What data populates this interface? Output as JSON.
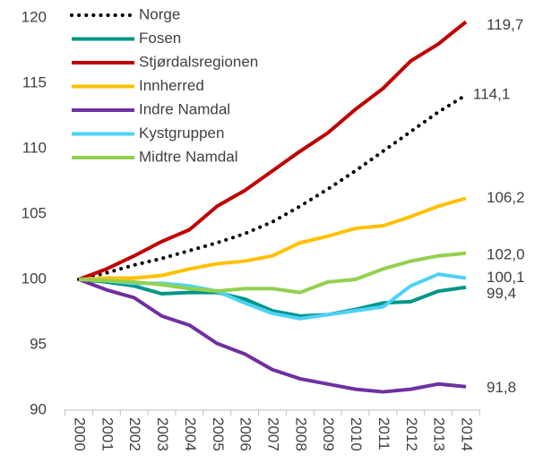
{
  "chart_data": {
    "type": "line",
    "categories": [
      "2000",
      "2001",
      "2002",
      "2003",
      "2004",
      "2005",
      "2006",
      "2007",
      "2008",
      "2009",
      "2010",
      "2011",
      "2012",
      "2013",
      "2014"
    ],
    "ylim": [
      90,
      120
    ],
    "yticks": [
      90,
      95,
      100,
      105,
      110,
      115,
      120
    ],
    "grid": false,
    "legend": "top-left",
    "series": [
      {
        "name": "Norge",
        "color": "#000000",
        "dash": "dotted",
        "values": [
          100,
          100.5,
          101.1,
          101.6,
          102.2,
          102.8,
          103.5,
          104.4,
          105.6,
          106.9,
          108.3,
          109.8,
          111.3,
          112.8,
          114.1
        ],
        "value_labels": [
          null,
          null,
          null,
          null,
          null,
          null,
          null,
          null,
          null,
          null,
          null,
          null,
          null,
          null,
          "114,1"
        ]
      },
      {
        "name": "Fosen",
        "color": "#009688",
        "values": [
          100,
          99.8,
          99.5,
          98.9,
          99.0,
          99.0,
          98.5,
          97.6,
          97.2,
          97.3,
          97.7,
          98.2,
          98.3,
          99.1,
          99.4
        ],
        "value_labels": [
          null,
          null,
          null,
          null,
          null,
          null,
          null,
          null,
          null,
          null,
          null,
          null,
          null,
          null,
          "99,4"
        ]
      },
      {
        "name": "Stjørdalsregionen",
        "color": "#C00000",
        "values": [
          100,
          100.8,
          101.8,
          102.9,
          103.8,
          105.6,
          106.8,
          108.3,
          109.8,
          111.2,
          113.0,
          114.6,
          116.7,
          118.0,
          119.7
        ],
        "value_labels": [
          null,
          null,
          null,
          null,
          null,
          null,
          null,
          null,
          null,
          null,
          null,
          null,
          null,
          null,
          "119,7"
        ]
      },
      {
        "name": "Innherred",
        "color": "#FFC000",
        "values": [
          100,
          100.1,
          100.1,
          100.3,
          100.8,
          101.2,
          101.4,
          101.8,
          102.8,
          103.3,
          103.9,
          104.1,
          104.8,
          105.6,
          106.2
        ],
        "value_labels": [
          null,
          null,
          null,
          null,
          null,
          null,
          null,
          null,
          null,
          null,
          null,
          null,
          null,
          null,
          "106,2"
        ]
      },
      {
        "name": "Indre Namdal",
        "color": "#7030A0",
        "values": [
          100,
          99.2,
          98.6,
          97.2,
          96.5,
          95.1,
          94.3,
          93.1,
          92.4,
          92.0,
          91.6,
          91.4,
          91.6,
          92.0,
          91.8
        ],
        "value_labels": [
          null,
          null,
          null,
          null,
          null,
          null,
          null,
          null,
          null,
          null,
          null,
          null,
          null,
          null,
          "91,8"
        ]
      },
      {
        "name": "Kystgruppen",
        "color": "#4DD2F5",
        "values": [
          100,
          99.9,
          99.7,
          99.7,
          99.5,
          99.1,
          98.2,
          97.4,
          97.0,
          97.3,
          97.6,
          97.9,
          99.5,
          100.4,
          100.1
        ],
        "value_labels": [
          null,
          null,
          null,
          null,
          null,
          null,
          null,
          null,
          null,
          null,
          null,
          null,
          null,
          null,
          "100,1"
        ]
      },
      {
        "name": "Midtre Namdal",
        "color": "#92D050",
        "values": [
          100,
          99.9,
          99.8,
          99.6,
          99.3,
          99.1,
          99.3,
          99.3,
          99.0,
          99.8,
          100.0,
          100.8,
          101.4,
          101.8,
          102.0
        ],
        "value_labels": [
          null,
          null,
          null,
          null,
          null,
          null,
          null,
          null,
          null,
          null,
          null,
          null,
          null,
          null,
          "102,0"
        ]
      }
    ]
  }
}
